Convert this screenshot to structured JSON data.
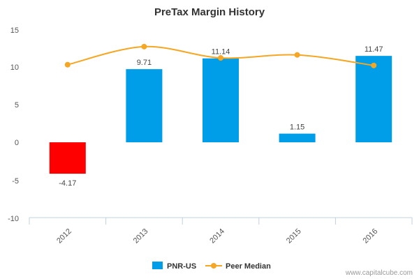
{
  "chart_data": {
    "type": "bar",
    "title": "PreTax Margin History",
    "categories": [
      "2012",
      "2013",
      "2014",
      "2015",
      "2016"
    ],
    "series": [
      {
        "name": "PNR-US",
        "type": "bar",
        "values": [
          -4.17,
          9.71,
          11.14,
          1.15,
          11.47
        ],
        "color": "#009ee8",
        "negative_color": "#ff0000",
        "data_labels": [
          "-4.17",
          "9.71",
          "11.14",
          "1.15",
          "11.47"
        ]
      },
      {
        "name": "Peer Median",
        "type": "line",
        "values": [
          10.3,
          12.7,
          11.2,
          11.6,
          10.2
        ],
        "color": "#f5a623"
      }
    ],
    "ylim": [
      -10,
      15
    ],
    "yticks": [
      "15",
      "10",
      "5",
      "0",
      "-5",
      "-10"
    ],
    "legend_position": "bottom-center",
    "grid": false
  },
  "footer": {
    "credit": "www.capitalcube.com"
  }
}
